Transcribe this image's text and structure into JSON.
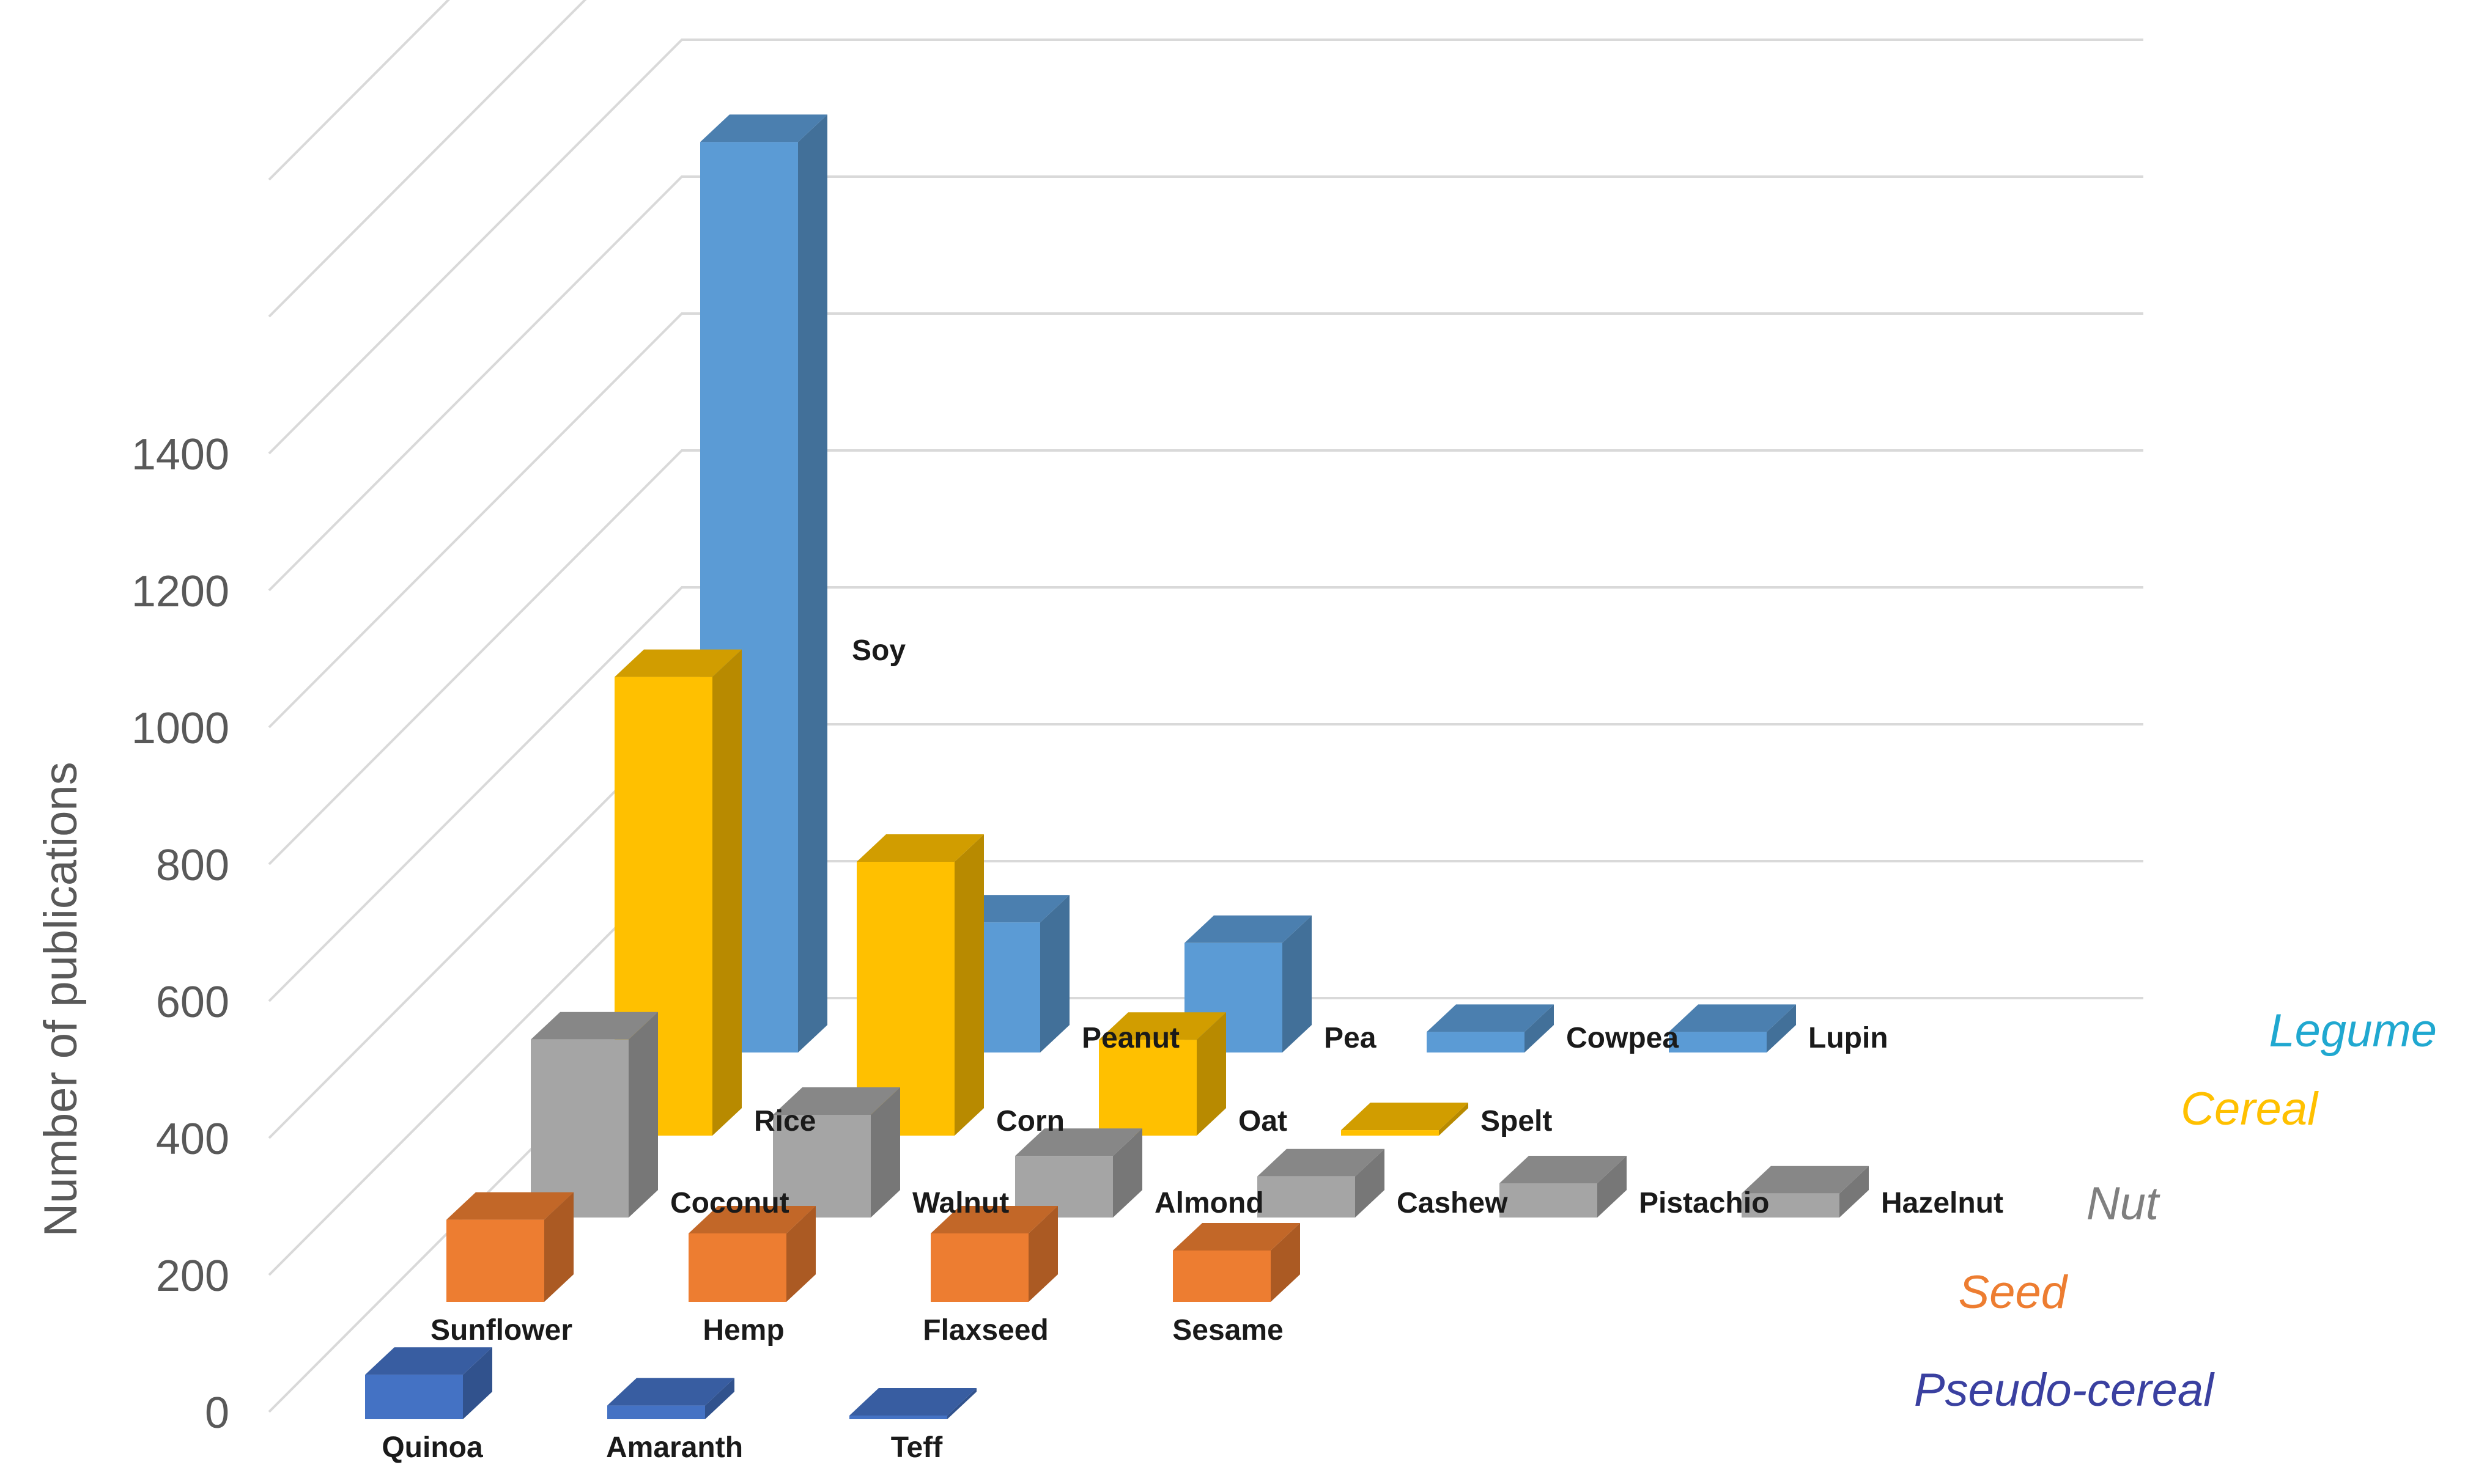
{
  "chart_data": {
    "type": "bar",
    "ylabel": "Number of publications",
    "ylim": [
      0,
      1400
    ],
    "yticks": [
      0,
      200,
      400,
      600,
      800,
      1000,
      1200,
      1400
    ],
    "grid": true,
    "series": [
      {
        "name": "Legume",
        "color": "#5b9bd5",
        "points": [
          {
            "label": "Soy",
            "value": 1330
          },
          {
            "label": "Peanut",
            "value": 190
          },
          {
            "label": "Pea",
            "value": 160
          },
          {
            "label": "Cowpea",
            "value": 30
          },
          {
            "label": "Lupin",
            "value": 30
          }
        ]
      },
      {
        "name": "Cereal",
        "color": "#ffc000",
        "points": [
          {
            "label": "Rice",
            "value": 670
          },
          {
            "label": "Corn",
            "value": 400
          },
          {
            "label": "Oat",
            "value": 140
          },
          {
            "label": "Spelt",
            "value": 8
          }
        ]
      },
      {
        "name": "Nut",
        "color": "#a5a5a5",
        "points": [
          {
            "label": "Coconut",
            "value": 260
          },
          {
            "label": "Walnut",
            "value": 150
          },
          {
            "label": "Almond",
            "value": 90
          },
          {
            "label": "Cashew",
            "value": 60
          },
          {
            "label": "Pistachio",
            "value": 50
          },
          {
            "label": "Hazelnut",
            "value": 35
          }
        ]
      },
      {
        "name": "Seed",
        "color": "#ed7d31",
        "points": [
          {
            "label": "Sunflower",
            "value": 120
          },
          {
            "label": "Hemp",
            "value": 100
          },
          {
            "label": "Flaxseed",
            "value": 100
          },
          {
            "label": "Sesame",
            "value": 75
          }
        ]
      },
      {
        "name": "Pseudo-cereal",
        "color": "#4472c4",
        "points": [
          {
            "label": "Quinoa",
            "value": 65
          },
          {
            "label": "Amaranth",
            "value": 20
          },
          {
            "label": "Teff",
            "value": 5
          }
        ]
      }
    ],
    "series_label_colors": [
      "#20a8d0",
      "#ffc000",
      "#7f7f7f",
      "#ed7d31",
      "#3a40a0"
    ]
  }
}
